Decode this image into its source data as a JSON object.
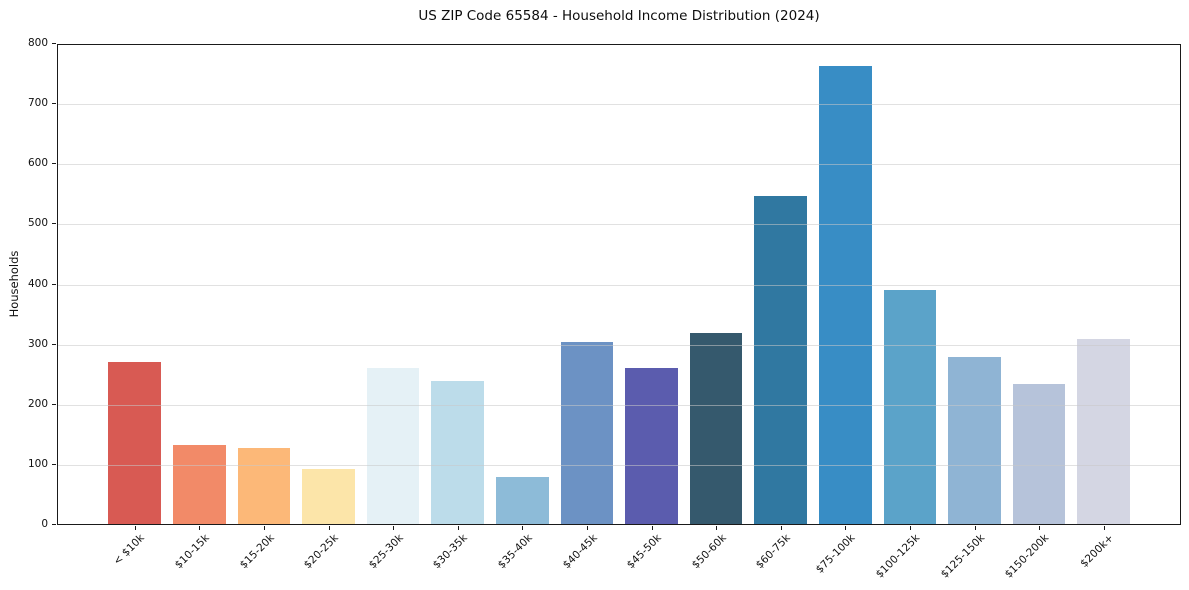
{
  "chart_data": {
    "type": "bar",
    "title": "US ZIP Code 65584 - Household Income Distribution (2024)",
    "xlabel": "",
    "ylabel": "Households",
    "categories": [
      "< $10k",
      "$10-15k",
      "$15-20k",
      "$20-25k",
      "$25-30k",
      "$30-35k",
      "$35-40k",
      "$40-45k",
      "$45-50k",
      "$50-60k",
      "$60-75k",
      "$75-100k",
      "$100-125k",
      "$125-150k",
      "$150-200k",
      "$200k+"
    ],
    "values": [
      270,
      131,
      126,
      92,
      260,
      238,
      79,
      302,
      260,
      317,
      545,
      762,
      389,
      278,
      233,
      308
    ],
    "bar_colors": [
      "#d85a53",
      "#f28a68",
      "#fcb878",
      "#fce5a9",
      "#e5f1f6",
      "#bcdcea",
      "#8dbbd8",
      "#6c92c4",
      "#5b5cae",
      "#35596d",
      "#3078a1",
      "#388dc5",
      "#5ba3c9",
      "#8fb4d4",
      "#b6c3da",
      "#d4d6e3"
    ],
    "ylim": [
      0,
      800
    ],
    "yticks": [
      0,
      100,
      200,
      300,
      400,
      500,
      600,
      700,
      800
    ],
    "grid": "horizontal",
    "legend": "none",
    "xtick_rotation": 45,
    "background": "#ffffff"
  }
}
